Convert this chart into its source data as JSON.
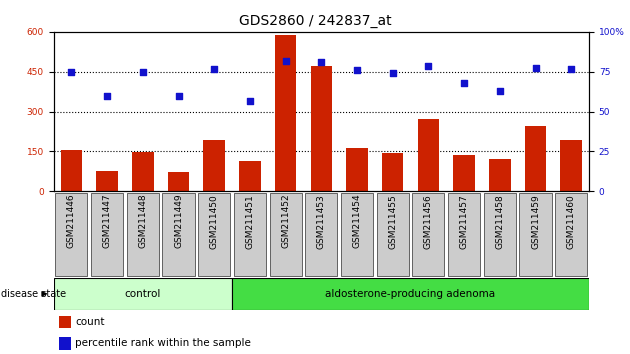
{
  "title": "GDS2860 / 242837_at",
  "samples": [
    "GSM211446",
    "GSM211447",
    "GSM211448",
    "GSM211449",
    "GSM211450",
    "GSM211451",
    "GSM211452",
    "GSM211453",
    "GSM211454",
    "GSM211455",
    "GSM211456",
    "GSM211457",
    "GSM211458",
    "GSM211459",
    "GSM211460"
  ],
  "counts": [
    155,
    75,
    148,
    72,
    193,
    112,
    590,
    470,
    163,
    143,
    270,
    135,
    122,
    245,
    193
  ],
  "percentiles_pct": [
    75,
    60,
    74.5,
    59.5,
    76.7,
    56.3,
    81.7,
    81.3,
    75.8,
    74.3,
    78.3,
    68,
    63,
    77.2,
    76.7
  ],
  "control_count": 5,
  "adenoma_count": 10,
  "ylim_left": [
    0,
    600
  ],
  "ylim_right": [
    0,
    100
  ],
  "yticks_left": [
    0,
    150,
    300,
    450,
    600
  ],
  "yticks_right": [
    0,
    25,
    50,
    75,
    100
  ],
  "bar_color": "#cc2200",
  "dot_color": "#1111cc",
  "xtick_bg": "#cccccc",
  "control_bg": "#ccffcc",
  "adenoma_bg": "#44dd44",
  "control_label": "control",
  "adenoma_label": "aldosterone-producing adenoma",
  "disease_state_label": "disease state",
  "legend_bar_label": "count",
  "legend_dot_label": "percentile rank within the sample",
  "title_fontsize": 10,
  "tick_fontsize": 6.5,
  "label_fontsize": 7.5,
  "grid_color": "#444444",
  "hgrid_ticks": [
    150,
    300,
    450
  ]
}
